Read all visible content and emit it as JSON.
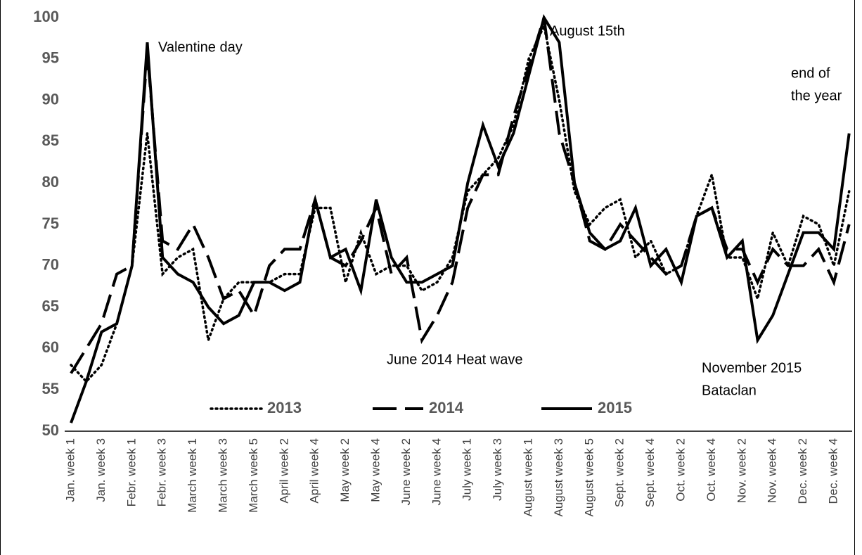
{
  "chart_data": {
    "type": "line",
    "categories": [
      "Jan. week 1",
      null,
      "Jan. week 3",
      null,
      "Febr. week 1",
      null,
      "Febr. week 3",
      null,
      "March week 1",
      null,
      "March week 3",
      null,
      "March week 5",
      null,
      "April week 2",
      null,
      "April week 4",
      null,
      "May week 2",
      null,
      "May week 4",
      null,
      "June week 2",
      null,
      "June week 4",
      null,
      "July week 1",
      null,
      "July week 3",
      null,
      "August week 1",
      null,
      "August week 3",
      null,
      "August week 5",
      null,
      "Sept. week 2",
      null,
      "Sept. week 4",
      null,
      "Oct. week 2",
      null,
      "Oct. week 4",
      null,
      "Nov. week 2",
      null,
      "Nov. week 4",
      null,
      "Dec. week 2",
      null,
      "Dec. week 4",
      null
    ],
    "series": [
      {
        "name": "2013",
        "color": "#000000",
        "dash": "dotted",
        "values": [
          58,
          56,
          58,
          63,
          70,
          86,
          69,
          71,
          72,
          61,
          66,
          68,
          68,
          68,
          69,
          69,
          77,
          77,
          68,
          74,
          69,
          70,
          70,
          67,
          68,
          71,
          79,
          81,
          83,
          87,
          95,
          99,
          90,
          79,
          75,
          77,
          78,
          71,
          73,
          69,
          70,
          76,
          81,
          71,
          71,
          66,
          74,
          70,
          76,
          75,
          70,
          79
        ]
      },
      {
        "name": "2014",
        "color": "#000000",
        "dash": "dashed",
        "values": [
          57,
          60,
          63,
          69,
          70,
          96,
          73,
          72,
          75,
          71,
          66,
          67,
          64,
          70,
          72,
          72,
          78,
          71,
          70,
          73,
          77,
          69,
          71,
          61,
          64,
          68,
          77,
          81,
          81,
          88,
          94,
          100,
          86,
          80,
          73,
          72,
          75,
          73,
          71,
          69,
          70,
          76,
          77,
          72,
          72,
          68,
          72,
          70,
          70,
          72,
          68,
          75
        ]
      },
      {
        "name": "2015",
        "color": "#000000",
        "dash": "solid",
        "values": [
          51,
          56,
          62,
          63,
          70,
          97,
          71,
          69,
          68,
          65,
          63,
          64,
          68,
          68,
          67,
          68,
          78,
          71,
          72,
          67,
          78,
          71,
          68,
          68,
          69,
          70,
          80,
          87,
          82,
          86,
          93,
          100,
          97,
          80,
          74,
          72,
          73,
          77,
          70,
          72,
          68,
          76,
          77,
          71,
          73,
          61,
          64,
          69,
          74,
          74,
          72,
          86
        ]
      }
    ],
    "ylim": [
      50,
      100
    ],
    "yticks": [
      50,
      55,
      60,
      65,
      70,
      75,
      80,
      85,
      90,
      95,
      100
    ],
    "annotations": [
      {
        "text": [
          "Valentine day"
        ]
      },
      {
        "text": [
          "August 15th"
        ]
      },
      {
        "text": [
          "end of",
          "the year"
        ]
      },
      {
        "text": [
          "June 2014 Heat wave"
        ]
      },
      {
        "text": [
          "November 2015",
          "Bataclan"
        ]
      }
    ]
  }
}
